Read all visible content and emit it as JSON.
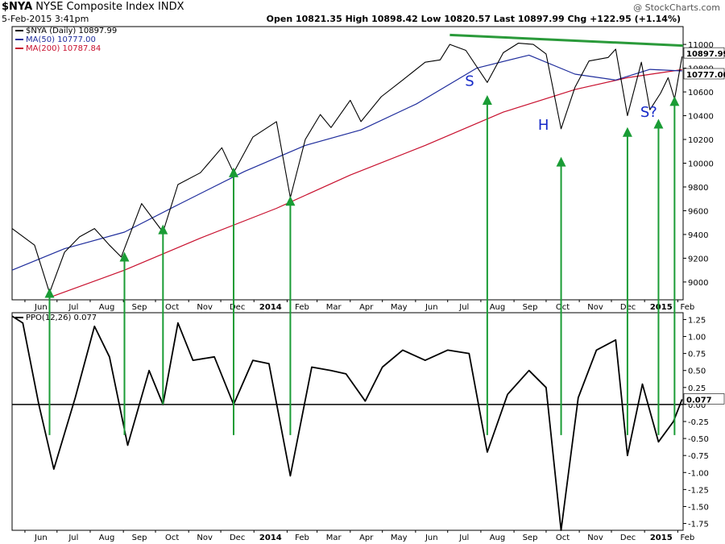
{
  "header": {
    "symbol": "$NYA",
    "name": "NYSE Composite Index",
    "exchange": "INDX",
    "datetime": "5-Feb-2015 3:41pm",
    "ohlc": "Open 10821.35   High 10898.42   Low 10820.57   Last 10897.99   Chg +122.95 (+1.14%)",
    "watermark": "@ StockCharts.com"
  },
  "colors": {
    "price": "#000000",
    "ma50": "#1f2d9c",
    "ma200": "#c8102e",
    "arrow": "#1a9c35",
    "annot": "#1428c8",
    "trend": "#2a9a3a"
  },
  "price_panel": {
    "legend": [
      "$NYA (Daily) 10897.99",
      "MA(50) 10777.00",
      "MA(200) 10787.84"
    ],
    "last_label": "10897.99",
    "ma_label": "10777.00",
    "yticks": [
      "11000",
      "10800",
      "10600",
      "10400",
      "10200",
      "10000",
      "9800",
      "9600",
      "9400",
      "9200",
      "9000"
    ],
    "annotations": [
      "S",
      "H",
      "S?"
    ]
  },
  "ppo_panel": {
    "legend": "PPO(12,26) 0.077",
    "last_label": "0.077",
    "yticks": [
      "1.25",
      "1.00",
      "0.75",
      "0.50",
      "0.25",
      "0.00",
      "-0.25",
      "-0.50",
      "-0.75",
      "-1.00",
      "-1.25",
      "-1.50",
      "-1.75"
    ]
  },
  "x_axis": [
    "Jun",
    "Jul",
    "Aug",
    "Sep",
    "Oct",
    "Nov",
    "Dec",
    "2014",
    "Feb",
    "Mar",
    "Apr",
    "May",
    "Jun",
    "Jul",
    "Aug",
    "Sep",
    "Oct",
    "Nov",
    "Dec",
    "2015",
    "Feb"
  ],
  "chart_data": [
    {
      "type": "line",
      "title": "$NYA NYSE Composite Index",
      "ylim": [
        8850,
        11150
      ],
      "series": [
        {
          "name": "$NYA (Daily)",
          "x": [
            "2013-05-20",
            "2013-06-10",
            "2013-06-24",
            "2013-07-08",
            "2013-07-22",
            "2013-08-05",
            "2013-08-19",
            "2013-08-30",
            "2013-09-18",
            "2013-10-08",
            "2013-10-22",
            "2013-11-12",
            "2013-12-02",
            "2013-12-13",
            "2013-12-31",
            "2014-01-22",
            "2014-02-04",
            "2014-02-18",
            "2014-03-04",
            "2014-03-14",
            "2014-04-01",
            "2014-04-11",
            "2014-04-30",
            "2014-05-20",
            "2014-06-10",
            "2014-06-24",
            "2014-07-03",
            "2014-07-18",
            "2014-08-07",
            "2014-08-22",
            "2014-09-05",
            "2014-09-19",
            "2014-10-01",
            "2014-10-15",
            "2014-10-28",
            "2014-11-10",
            "2014-11-28",
            "2014-12-05",
            "2014-12-16",
            "2014-12-29",
            "2015-01-06",
            "2015-01-16",
            "2015-01-23",
            "2015-01-29",
            "2015-02-05"
          ],
          "values": [
            9450,
            9310,
            8910,
            9250,
            9380,
            9450,
            9310,
            9210,
            9660,
            9420,
            9820,
            9920,
            10130,
            9920,
            10220,
            10350,
            9710,
            10200,
            10410,
            10300,
            10530,
            10350,
            10560,
            10700,
            10850,
            10870,
            11000,
            10950,
            10680,
            10930,
            11010,
            11000,
            10920,
            10290,
            10640,
            10860,
            10890,
            10960,
            10400,
            10850,
            10450,
            10590,
            10720,
            10540,
            10898
          ]
        },
        {
          "name": "MA(50)",
          "x": [
            "2013-05-20",
            "2013-07-08",
            "2013-09-02",
            "2013-10-22",
            "2013-12-23",
            "2014-02-18",
            "2014-04-11",
            "2014-06-02",
            "2014-07-28",
            "2014-09-15",
            "2014-10-28",
            "2014-12-05",
            "2015-01-06",
            "2015-02-05"
          ],
          "values": [
            9100,
            9280,
            9420,
            9650,
            9930,
            10150,
            10280,
            10500,
            10800,
            10910,
            10750,
            10700,
            10790,
            10777
          ]
        },
        {
          "name": "MA(200)",
          "x": [
            "2013-06-24",
            "2013-09-02",
            "2013-11-12",
            "2014-01-22",
            "2014-04-01",
            "2014-06-10",
            "2014-08-22",
            "2014-10-28",
            "2014-12-16",
            "2015-02-05"
          ],
          "values": [
            8870,
            9100,
            9370,
            9620,
            9900,
            10150,
            10430,
            10620,
            10720,
            10788
          ]
        }
      ]
    },
    {
      "type": "line",
      "title": "PPO(12,26)",
      "ylim": [
        -1.85,
        1.35
      ],
      "series": [
        {
          "name": "PPO(12,26)",
          "x": [
            "2013-05-20",
            "2013-05-30",
            "2013-06-14",
            "2013-06-28",
            "2013-07-18",
            "2013-08-05",
            "2013-08-19",
            "2013-09-05",
            "2013-09-25",
            "2013-10-08",
            "2013-10-22",
            "2013-11-05",
            "2013-11-25",
            "2013-12-13",
            "2013-12-31",
            "2014-01-15",
            "2014-02-04",
            "2014-02-24",
            "2014-03-14",
            "2014-03-28",
            "2014-04-15",
            "2014-05-01",
            "2014-05-20",
            "2014-06-10",
            "2014-07-01",
            "2014-07-21",
            "2014-08-07",
            "2014-08-26",
            "2014-09-15",
            "2014-10-01",
            "2014-10-15",
            "2014-10-31",
            "2014-11-17",
            "2014-12-05",
            "2014-12-16",
            "2014-12-30",
            "2015-01-14",
            "2015-01-28",
            "2015-02-05"
          ],
          "values": [
            1.3,
            1.2,
            0.0,
            -0.95,
            0.1,
            1.15,
            0.7,
            -0.6,
            0.5,
            0.0,
            1.2,
            0.65,
            0.7,
            0.0,
            0.65,
            0.6,
            -1.05,
            0.55,
            0.5,
            0.45,
            0.05,
            0.55,
            0.8,
            0.65,
            0.8,
            0.75,
            -0.7,
            0.15,
            0.5,
            0.25,
            -1.85,
            0.1,
            0.8,
            0.95,
            -0.75,
            0.3,
            -0.55,
            -0.25,
            0.077
          ]
        }
      ]
    }
  ]
}
